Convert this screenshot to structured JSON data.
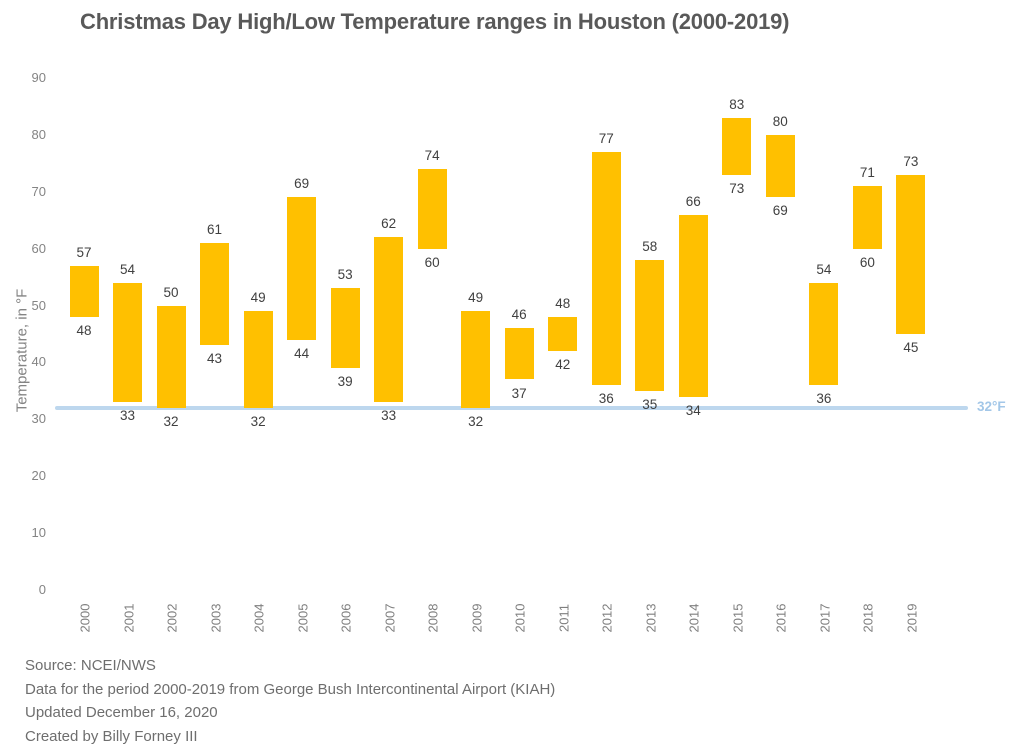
{
  "title": "Christmas Day High/Low Temperature ranges in Houston (2000-2019)",
  "footer": {
    "lines": [
      "Source: NCEI/NWS",
      "Data for the period 2000-2019 from George Bush Intercontinental Airport (KIAH)",
      "Updated December 16, 2020",
      "Created by Billy Forney III"
    ]
  },
  "chart_data": {
    "type": "bar",
    "subtype": "floating-range-column",
    "title": "Christmas Day High/Low Temperature ranges in Houston (2000-2019)",
    "categories": [
      "2000",
      "2001",
      "2002",
      "2003",
      "2004",
      "2005",
      "2006",
      "2007",
      "2008",
      "2009",
      "2010",
      "2011",
      "2012",
      "2013",
      "2014",
      "2015",
      "2016",
      "2017",
      "2018",
      "2019"
    ],
    "series": [
      {
        "name": "Low",
        "values": [
          48,
          33,
          32,
          43,
          32,
          44,
          39,
          33,
          60,
          32,
          37,
          42,
          36,
          35,
          34,
          73,
          69,
          36,
          60,
          45
        ]
      },
      {
        "name": "High",
        "values": [
          57,
          54,
          50,
          61,
          49,
          69,
          53,
          62,
          74,
          49,
          46,
          48,
          77,
          58,
          66,
          83,
          80,
          54,
          71,
          73
        ]
      }
    ],
    "xlabel": "",
    "ylabel": "Temperature, in °F",
    "ylim": [
      0,
      90
    ],
    "yticks": [
      0,
      10,
      20,
      30,
      40,
      50,
      60,
      70,
      80,
      90
    ],
    "grid": false,
    "legend": "none",
    "bar_color": "#FFC000",
    "data_label_color": "#404040",
    "axis_text_color": "#848484",
    "reference_line": {
      "value": 32,
      "label": "32°F",
      "line_color": "#BDD7EE",
      "label_color": "#A3C7E8"
    }
  }
}
